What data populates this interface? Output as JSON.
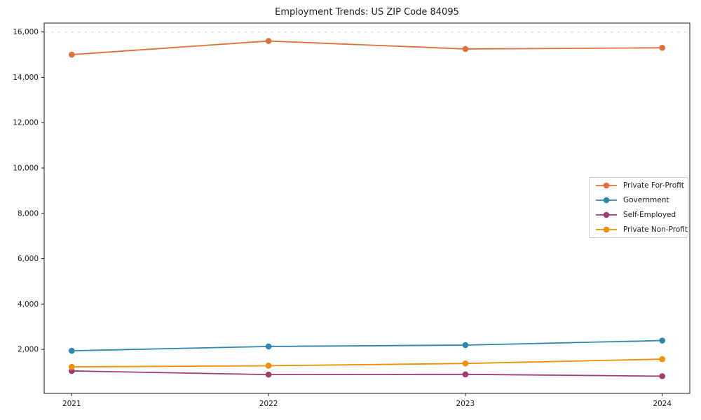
{
  "page": {
    "background": "#ffffff",
    "text_color": "#1a1a1a",
    "axis_color": "#1a1a1a"
  },
  "chart_data": {
    "type": "line",
    "title": "Employment Trends: US ZIP Code 84095",
    "x": [
      2021,
      2022,
      2023,
      2024
    ],
    "x_tick_labels": [
      "2021",
      "2022",
      "2023",
      "2024"
    ],
    "xlim": [
      2020.86,
      2024.14
    ],
    "ylim": [
      60,
      16390
    ],
    "y_ticks": [
      2000,
      4000,
      6000,
      8000,
      10000,
      12000,
      14000,
      16000
    ],
    "y_tick_labels": [
      "2,000",
      "4,000",
      "6,000",
      "8,000",
      "10,000",
      "12,000",
      "14,000",
      "16,000"
    ],
    "grid": false,
    "reference_line": {
      "y": 16000,
      "style": "dashed",
      "color": "#cccccc"
    },
    "series": [
      {
        "name": "Private For-Profit",
        "color": "#E0703A",
        "values": [
          15000,
          15600,
          15250,
          15300
        ]
      },
      {
        "name": "Government",
        "color": "#2E86AB",
        "values": [
          1940,
          2130,
          2190,
          2390
        ]
      },
      {
        "name": "Self-Employed",
        "color": "#A23B72",
        "values": [
          1050,
          890,
          900,
          820
        ]
      },
      {
        "name": "Private Non-Profit",
        "color": "#F18F01",
        "values": [
          1230,
          1280,
          1380,
          1570
        ]
      }
    ],
    "legend": {
      "position": "center-right",
      "entries": [
        "Private For-Profit",
        "Government",
        "Self-Employed",
        "Private Non-Profit"
      ]
    }
  }
}
